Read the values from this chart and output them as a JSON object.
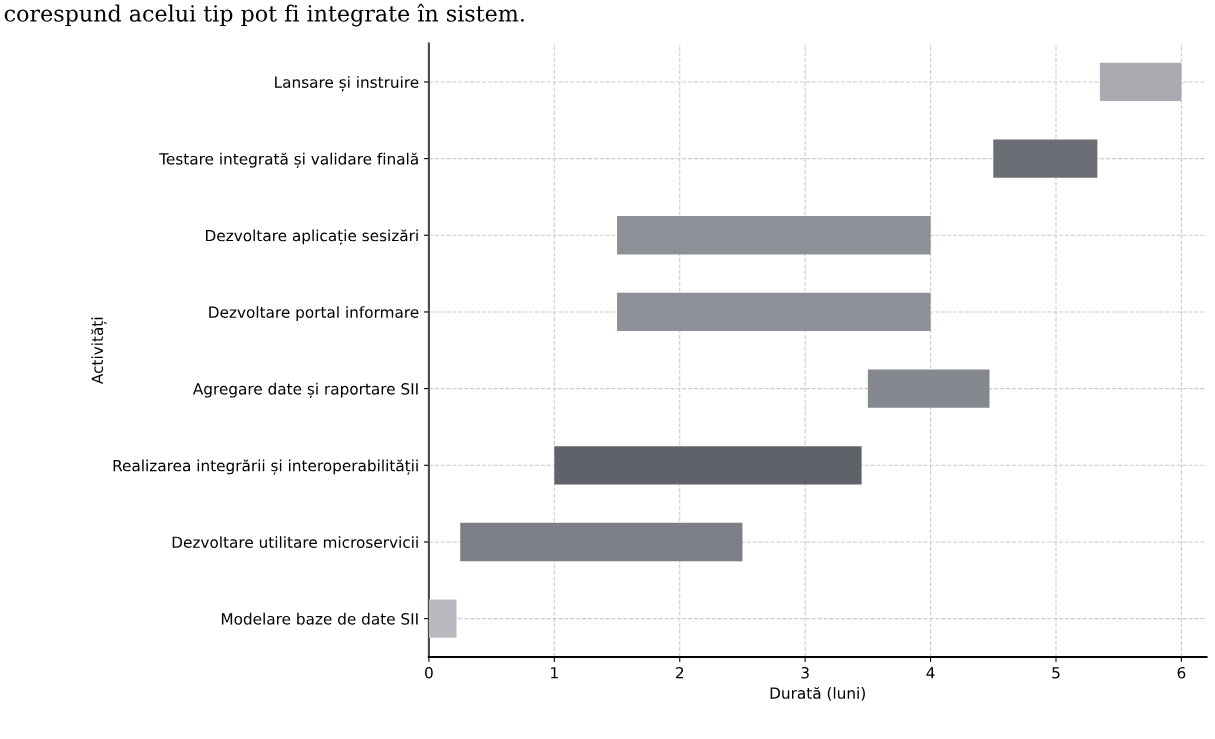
{
  "chart_data": {
    "type": "bar",
    "orientation": "horizontal",
    "categories": [
      "Lansare și instruire",
      "Testare integrată și validare finală",
      "Dezvoltare aplicație sesizări",
      "Dezvoltare portal informare",
      "Agregare date și raportare SII",
      "Realizarea integrării și interoperabilității",
      "Dezvoltare utilitare microservicii",
      "Modelare baze de date SII"
    ],
    "base": [
      5.35,
      4.5,
      1.5,
      1.5,
      3.5,
      1.0,
      0.25,
      0.0
    ],
    "values": [
      0.65,
      0.83,
      2.5,
      2.5,
      0.97,
      2.45,
      2.25,
      0.22
    ],
    "colors": [
      "#a9abb0",
      "#6b6e74",
      "#8d9096",
      "#8d9096",
      "#85888e",
      "#5f6268",
      "#7c7f85",
      "#b8bac0"
    ],
    "xlabel": "Durată (luni)",
    "ylabel": "Activități",
    "xlim": [
      0,
      6.2
    ],
    "xticks": [
      0,
      1,
      2,
      3,
      4,
      5,
      6
    ],
    "grid": true,
    "annotations": [
      "corespund acelui tip pot fi integrate în sistem."
    ]
  }
}
